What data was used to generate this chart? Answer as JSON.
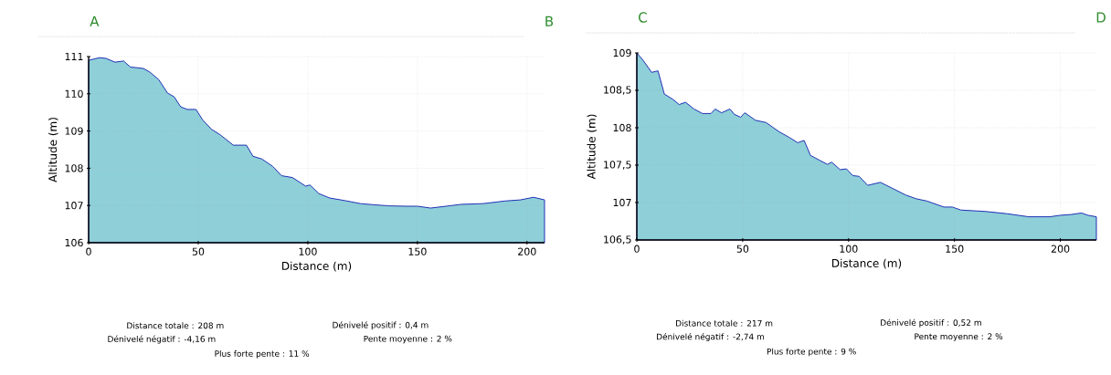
{
  "chart_data": [
    {
      "type": "area",
      "xlabel": "Distance (m)",
      "ylabel": "Altitude (m)",
      "xlim": [
        0,
        208
      ],
      "ylim": [
        106,
        111
      ],
      "xticks": [
        0,
        50,
        100,
        150,
        200
      ],
      "yticks": [
        106,
        107,
        108,
        109,
        110,
        111
      ],
      "grid": true,
      "annotations": [
        "A",
        "B",
        "Distance totale : 208 m",
        "Dénivelé positif : 0,4 m",
        "Dénivelé négatif : -4,16 m",
        "Pente moyenne : 2 %",
        "Plus forte pente : 11 %"
      ],
      "series": [
        {
          "color": "#8ecfd8",
          "x": [
            0,
            5,
            8,
            12,
            16,
            19,
            25,
            28,
            32,
            36,
            39,
            42,
            45,
            49,
            52,
            56,
            60,
            66,
            72,
            75,
            79,
            84,
            88,
            93,
            99,
            101,
            105,
            110,
            117,
            124,
            130,
            137,
            145,
            150,
            156,
            163,
            170,
            180,
            190,
            197,
            203,
            208
          ],
          "values": [
            110.9,
            110.97,
            110.95,
            110.85,
            110.88,
            110.72,
            110.68,
            110.58,
            110.38,
            110.02,
            109.92,
            109.65,
            109.58,
            109.58,
            109.3,
            109.05,
            108.9,
            108.62,
            108.62,
            108.32,
            108.25,
            108.05,
            107.8,
            107.75,
            107.52,
            107.55,
            107.32,
            107.2,
            107.13,
            107.05,
            107.02,
            106.99,
            106.98,
            106.98,
            106.93,
            106.98,
            107.03,
            107.05,
            107.12,
            107.15,
            107.22,
            107.15
          ]
        }
      ]
    },
    {
      "type": "area",
      "xlabel": "Distance (m)",
      "ylabel": "Altitude (m)",
      "xlim": [
        0,
        217
      ],
      "ylim": [
        106.5,
        109
      ],
      "xticks": [
        0,
        50,
        100,
        150,
        200
      ],
      "yticks": [
        {
          "value": 106.5,
          "label": "106,5"
        },
        107,
        {
          "value": 107.5,
          "label": "107,5"
        },
        108,
        {
          "value": 108.5,
          "label": "108,5"
        },
        109
      ],
      "grid": true,
      "annotations": [
        "C",
        "D",
        "Distance totale : 217 m",
        "Dénivelé positif : 0,52 m",
        "Dénivelé négatif : -2,74 m",
        "Pente moyenne : 2 %",
        "Plus forte pente : 9 %"
      ],
      "series": [
        {
          "color": "#8ecfd8",
          "x": [
            0,
            3,
            7,
            10,
            13,
            17,
            20,
            23,
            27,
            31,
            35,
            37,
            40,
            44,
            46,
            49,
            51,
            56,
            61,
            67,
            72,
            76,
            79,
            82,
            86,
            90,
            92,
            96,
            99,
            102,
            105,
            109,
            115,
            120,
            127,
            132,
            137,
            145,
            149,
            153,
            165,
            175,
            185,
            195,
            200,
            205,
            210,
            213,
            217
          ],
          "values": [
            109.0,
            108.9,
            108.74,
            108.76,
            108.45,
            108.38,
            108.31,
            108.34,
            108.25,
            108.19,
            108.19,
            108.25,
            108.2,
            108.25,
            108.18,
            108.14,
            108.2,
            108.1,
            108.07,
            107.95,
            107.87,
            107.8,
            107.83,
            107.63,
            107.57,
            107.51,
            107.54,
            107.44,
            107.45,
            107.36,
            107.35,
            107.23,
            107.27,
            107.2,
            107.1,
            107.05,
            107.02,
            106.94,
            106.94,
            106.9,
            106.88,
            106.85,
            106.81,
            106.81,
            106.83,
            106.84,
            106.86,
            106.83,
            106.81
          ]
        }
      ]
    }
  ]
}
